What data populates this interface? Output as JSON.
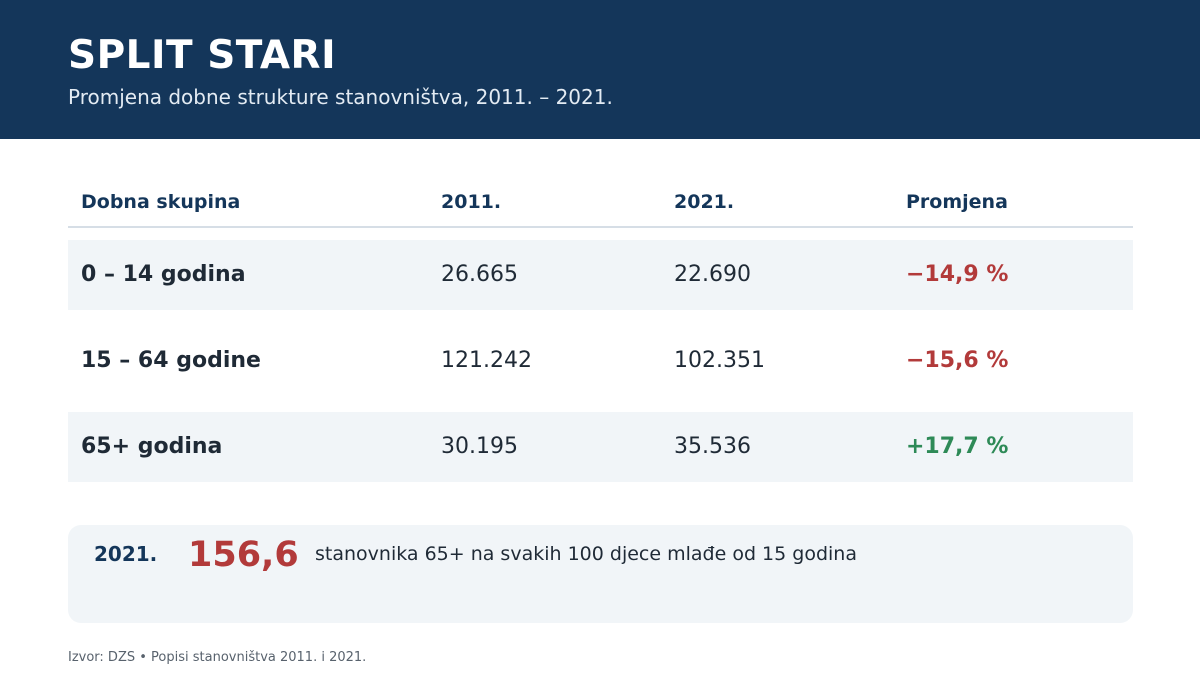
{
  "header": {
    "title": "SPLIT STARI",
    "subtitle": "Promjena dobne strukture stanovništva, 2011. – 2021."
  },
  "table": {
    "columns": [
      "Dobna skupina",
      "2011.",
      "2021.",
      "Promjena"
    ],
    "rows": [
      {
        "group": "0 – 14 godina",
        "y2011": "26.665",
        "y2021": "22.690",
        "change": "−14,9 %",
        "trend": "decrease"
      },
      {
        "group": "15 – 64 godine",
        "y2011": "121.242",
        "y2021": "102.351",
        "change": "−15,6 %",
        "trend": "decrease"
      },
      {
        "group": "65+ godina",
        "y2011": "30.195",
        "y2021": "35.536",
        "change": "+17,7 %",
        "trend": "increase"
      }
    ]
  },
  "callout": {
    "year": "2021.",
    "value": "156,6",
    "text": "stanovnika 65+ na svakih 100 djece mlađe od 15 godina"
  },
  "source": "Izvor: DZS • Popisi stanovništva 2011. i 2021.",
  "colors": {
    "header_bg": "#14365a",
    "decrease": "#b23a3a",
    "increase": "#2e8a57",
    "row_shade": "#f1f5f8"
  }
}
